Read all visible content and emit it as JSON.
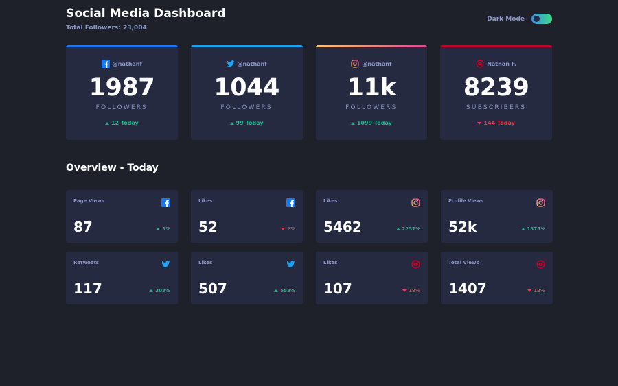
{
  "header": {
    "title": "Social Media Dashboard",
    "subtitle": "Total Followers: 23,004",
    "dark_mode_label": "Dark Mode",
    "dark_mode_on": true
  },
  "colors": {
    "facebook": "#1877f2",
    "twitter": "#1da1f2",
    "instagram_start": "#fdc468",
    "instagram_end": "#df4996",
    "youtube": "#c4032a",
    "up": "#1db489",
    "down": "#dc414c"
  },
  "cards": [
    {
      "platform": "facebook",
      "icon": "facebook-icon",
      "handle": "@nathanf",
      "count": "1987",
      "unit": "FOLLOWERS",
      "today": "12 Today",
      "trend": "up"
    },
    {
      "platform": "twitter",
      "icon": "twitter-icon",
      "handle": "@nathanf",
      "count": "1044",
      "unit": "FOLLOWERS",
      "today": "99 Today",
      "trend": "up"
    },
    {
      "platform": "instagram",
      "icon": "instagram-icon",
      "handle": "@nathanf",
      "count": "11k",
      "unit": "FOLLOWERS",
      "today": "1099 Today",
      "trend": "up"
    },
    {
      "platform": "youtube",
      "icon": "youtube-icon",
      "handle": "Nathan F.",
      "count": "8239",
      "unit": "SUBSCRIBERS",
      "today": "144 Today",
      "trend": "down"
    }
  ],
  "overview": {
    "title": "Overview - Today",
    "items": [
      {
        "label": "Page Views",
        "platform": "facebook",
        "icon": "facebook-icon",
        "value": "87",
        "pct": "3%",
        "trend": "up"
      },
      {
        "label": "Likes",
        "platform": "facebook",
        "icon": "facebook-icon",
        "value": "52",
        "pct": "2%",
        "trend": "down"
      },
      {
        "label": "Likes",
        "platform": "instagram",
        "icon": "instagram-icon",
        "value": "5462",
        "pct": "2257%",
        "trend": "up"
      },
      {
        "label": "Profile Views",
        "platform": "instagram",
        "icon": "instagram-icon",
        "value": "52k",
        "pct": "1375%",
        "trend": "up"
      },
      {
        "label": "Retweets",
        "platform": "twitter",
        "icon": "twitter-icon",
        "value": "117",
        "pct": "303%",
        "trend": "up"
      },
      {
        "label": "Likes",
        "platform": "twitter",
        "icon": "twitter-icon",
        "value": "507",
        "pct": "553%",
        "trend": "up"
      },
      {
        "label": "Likes",
        "platform": "youtube",
        "icon": "youtube-icon",
        "value": "107",
        "pct": "19%",
        "trend": "down"
      },
      {
        "label": "Total Views",
        "platform": "youtube",
        "icon": "youtube-icon",
        "value": "1407",
        "pct": "12%",
        "trend": "down"
      }
    ]
  }
}
